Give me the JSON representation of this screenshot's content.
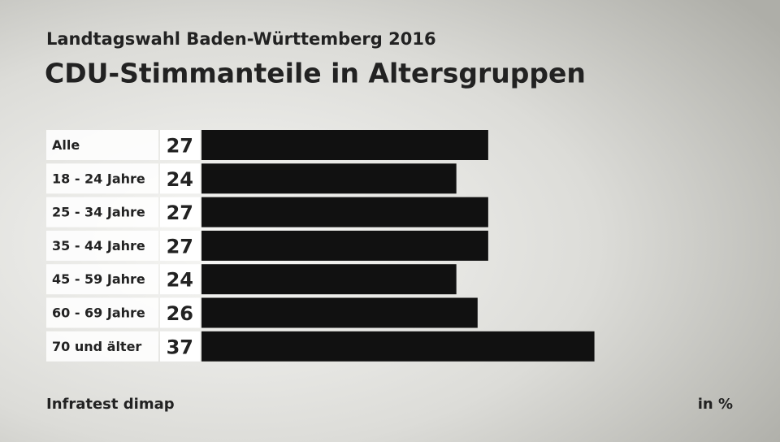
{
  "chart_data": {
    "type": "bar",
    "orientation": "horizontal",
    "subtitle": "Landtagswahl Baden-Württemberg 2016",
    "title": "CDU-Stimmanteile in Altersgruppen",
    "categories": [
      "Alle",
      "18 - 24 Jahre",
      "25 - 34 Jahre",
      "35 - 44 Jahre",
      "45 - 59 Jahre",
      "60 - 69 Jahre",
      "70 und älter"
    ],
    "values": [
      27,
      24,
      27,
      27,
      24,
      26,
      37
    ],
    "color": "#111111",
    "source": "Infratest dimap",
    "unit": "in %"
  }
}
